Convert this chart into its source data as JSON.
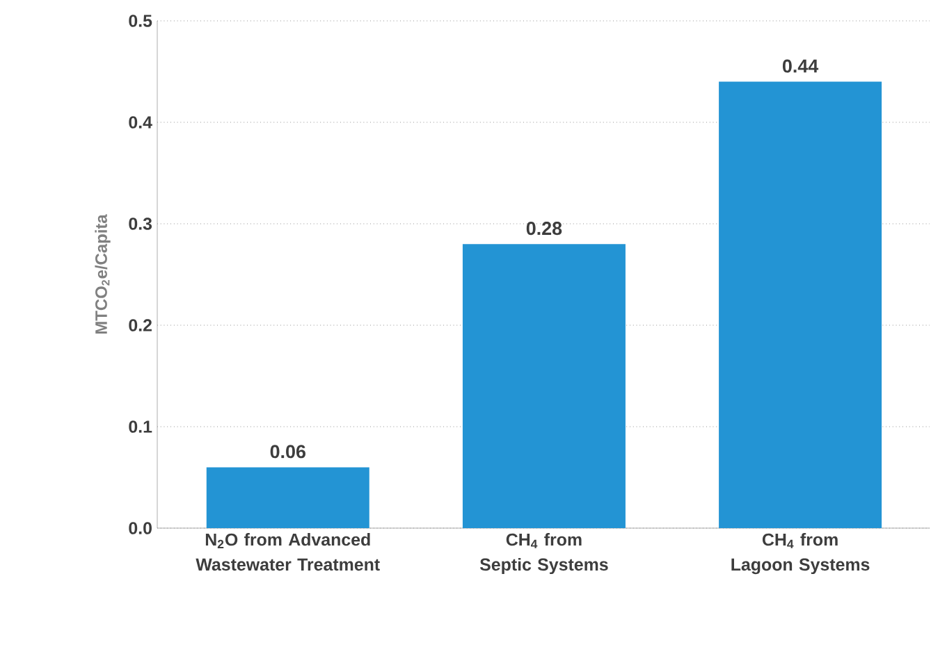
{
  "chart_data": {
    "type": "bar",
    "ylabel": "MTCO$_{2}$e/Capita",
    "categories": [
      "N$_{2}$O from Advanced Wastewater Treatment",
      "CH$_{4}$ from Septic Systems",
      "CH$_{4}$ from Lagoon Systems"
    ],
    "values": [
      0.06,
      0.28,
      0.44
    ],
    "color": "#2394d4",
    "ylim": [
      0,
      0.5
    ],
    "yticks": [
      {
        "value": 0,
        "label": "0.0"
      },
      0.1,
      0.2,
      0.3,
      0.4,
      0.5
    ],
    "grid": "y",
    "data_labels": true
  }
}
